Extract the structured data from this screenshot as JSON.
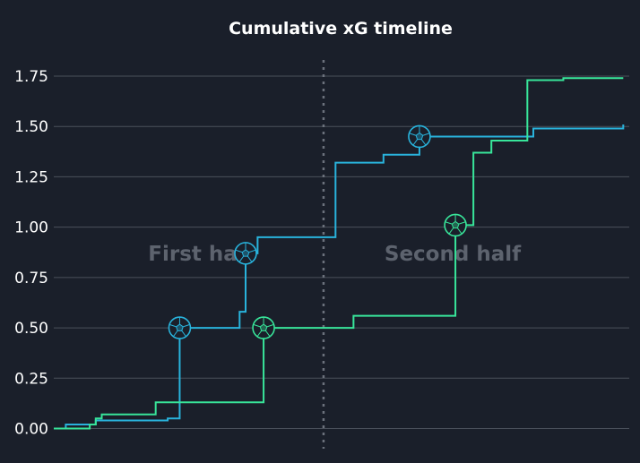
{
  "chart_data": {
    "type": "line",
    "title": "Cumulative xG timeline",
    "xlabel": "",
    "ylabel": "",
    "xlim": [
      0,
      96
    ],
    "ylim": [
      -0.1,
      1.83
    ],
    "yticks": [
      "0.00",
      "0.25",
      "0.50",
      "0.75",
      "1.00",
      "1.25",
      "1.50",
      "1.75"
    ],
    "grid": "horizontal",
    "halftime_minute": 45,
    "half_labels": [
      "First half",
      "Second half"
    ],
    "series": [
      {
        "color": "#29b3dc",
        "steps": [
          [
            0,
            0
          ],
          [
            2,
            0.02
          ],
          [
            7,
            0.04
          ],
          [
            19,
            0.05
          ],
          [
            21,
            0.5
          ],
          [
            31,
            0.58
          ],
          [
            32,
            0.87
          ],
          [
            34,
            0.95
          ],
          [
            47,
            1.32
          ],
          [
            55,
            1.36
          ],
          [
            61,
            1.45
          ],
          [
            80,
            1.49
          ],
          [
            95,
            1.51
          ]
        ],
        "goals": [
          [
            21,
            0.5
          ],
          [
            32,
            0.87
          ],
          [
            61,
            1.45
          ]
        ]
      },
      {
        "color": "#38e59a",
        "steps": [
          [
            0,
            0
          ],
          [
            6,
            0.02
          ],
          [
            7,
            0.05
          ],
          [
            8,
            0.07
          ],
          [
            17,
            0.13
          ],
          [
            35,
            0.5
          ],
          [
            50,
            0.56
          ],
          [
            67,
            1.01
          ],
          [
            70,
            1.37
          ],
          [
            73,
            1.43
          ],
          [
            79,
            1.73
          ],
          [
            85,
            1.74
          ],
          [
            95,
            1.74
          ]
        ],
        "goals": [
          [
            35,
            0.5
          ],
          [
            67,
            1.01
          ]
        ]
      }
    ]
  }
}
